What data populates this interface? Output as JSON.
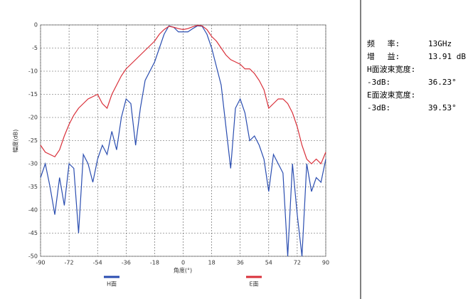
{
  "chart_data": {
    "type": "line",
    "ylabel": "幅度(dB)",
    "xlabel": "角度(°)",
    "x": [
      -90,
      -87,
      -84,
      -81,
      -78,
      -75,
      -72,
      -69,
      -66,
      -63,
      -60,
      -57,
      -54,
      -51,
      -48,
      -45,
      -42,
      -39,
      -36,
      -33,
      -30,
      -27,
      -24,
      -21,
      -18,
      -15,
      -12,
      -9,
      -6,
      -3,
      0,
      3,
      6,
      9,
      12,
      15,
      18,
      21,
      24,
      27,
      30,
      33,
      36,
      39,
      42,
      45,
      48,
      51,
      54,
      57,
      60,
      63,
      66,
      69,
      72,
      75,
      78,
      81,
      84,
      87,
      90
    ],
    "series": [
      {
        "name": "H面",
        "color": "#2a4db0",
        "values": [
          -33,
          -30,
          -35,
          -41,
          -33,
          -39,
          -30,
          -31,
          -45,
          -28,
          -30,
          -34,
          -29,
          -26,
          -28,
          -23,
          -27,
          -20,
          -16,
          -17,
          -26,
          -18,
          -12,
          -10,
          -8,
          -5,
          -2,
          -0.2,
          -0.5,
          -1.5,
          -1.5,
          -1.5,
          -0.8,
          -0.2,
          -0.3,
          -2,
          -5,
          -9,
          -13,
          -22,
          -31,
          -18,
          -16,
          -19,
          -25,
          -24,
          -26,
          -29,
          -36,
          -28,
          -30,
          -32,
          -50,
          -30,
          -41,
          -50,
          -30,
          -36,
          -33,
          -34,
          -29
        ]
      },
      {
        "name": "E面",
        "color": "#d9303a",
        "values": [
          -26,
          -27.5,
          -28,
          -28.5,
          -27,
          -24,
          -21.5,
          -19.5,
          -18,
          -17,
          -16,
          -15.5,
          -15,
          -17,
          -18,
          -15,
          -13,
          -11,
          -9.5,
          -8.5,
          -7.5,
          -6.5,
          -5.5,
          -4.5,
          -3.5,
          -2,
          -1,
          -0.3,
          -0.5,
          -0.8,
          -1,
          -0.8,
          -0.4,
          -0.1,
          -0.2,
          -1,
          -2.5,
          -3.5,
          -5,
          -6.5,
          -7.5,
          -8,
          -8.5,
          -9.5,
          -9.5,
          -10.5,
          -12,
          -14,
          -18,
          -17,
          -16,
          -16,
          -17,
          -19,
          -22,
          -26,
          -29,
          -30,
          -29,
          -30,
          -27.5
        ]
      }
    ],
    "xlim": [
      -90,
      90
    ],
    "xticks": [
      -90,
      -72,
      -54,
      -36,
      -18,
      0,
      18,
      36,
      54,
      72,
      90
    ],
    "ylim": [
      -50,
      0
    ],
    "yticks": [
      0,
      -5,
      -10,
      -15,
      -20,
      -25,
      -30,
      -35,
      -40,
      -45,
      -50
    ],
    "grid": true
  },
  "info": [
    {
      "label": "频　 率:",
      "value": "13GHz"
    },
    {
      "label": "增　 益:",
      "value": "13.91 dB"
    },
    {
      "label": "H面波束宽度:",
      "value": null
    },
    {
      "label": "-3dB:",
      "value": "36.23°"
    },
    {
      "label": "E面波束宽度:",
      "value": null
    },
    {
      "label": "-3dB:",
      "value": "39.53°"
    }
  ]
}
